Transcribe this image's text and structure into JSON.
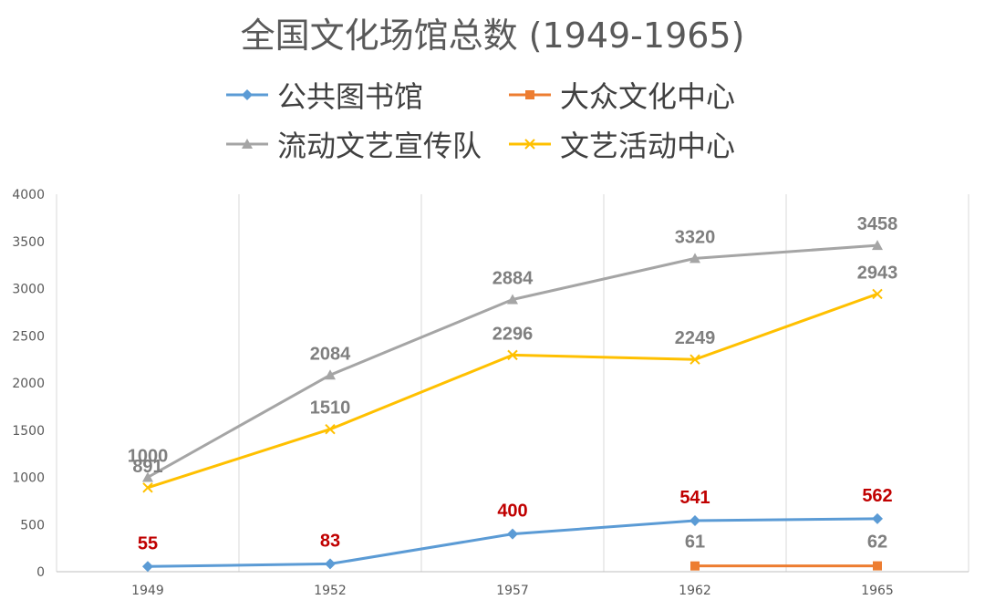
{
  "chart_data": {
    "type": "line",
    "title": "全国文化场馆总数 (1949-1965)",
    "xlabel": "",
    "ylabel": "",
    "categories": [
      "1949",
      "1952",
      "1957",
      "1962",
      "1965"
    ],
    "ylim": [
      0,
      4000
    ],
    "yticks": [
      0,
      500,
      1000,
      1500,
      2000,
      2500,
      3000,
      3500,
      4000
    ],
    "grid": "vertical",
    "legend_position": "top",
    "series": [
      {
        "name": "公共图书馆",
        "values": [
          55,
          83,
          400,
          541,
          562
        ],
        "color": "#5B9BD5",
        "marker": "diamond",
        "label_color": "#C00000"
      },
      {
        "name": "大众文化中心",
        "values": [
          null,
          null,
          null,
          61,
          62
        ],
        "color": "#ED7D31",
        "marker": "square",
        "label_color": "#7F7F7F"
      },
      {
        "name": "流动文艺宣传队",
        "values": [
          1000,
          2084,
          2884,
          3320,
          3458
        ],
        "color": "#A5A5A5",
        "marker": "triangle",
        "label_color": "#7F7F7F"
      },
      {
        "name": "文艺活动中心",
        "values": [
          891,
          1510,
          2296,
          2249,
          2943
        ],
        "color": "#FFC000",
        "marker": "x",
        "label_color": "#7F7F7F"
      }
    ]
  }
}
